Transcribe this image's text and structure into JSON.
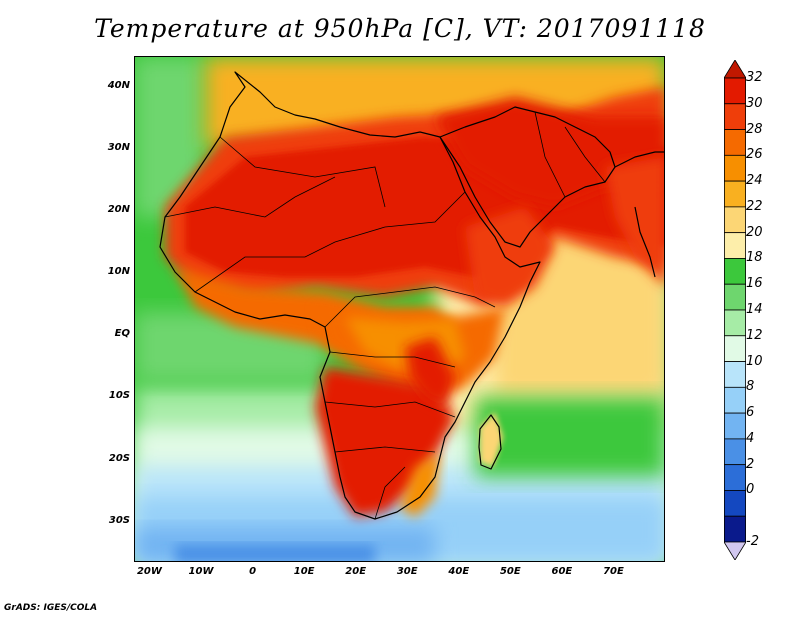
{
  "title": "Temperature at 950hPa [C], VT: 2017091118",
  "credit": "GrADS: IGES/COLA",
  "map": {
    "lon_range": [
      -23,
      80
    ],
    "lat_range": [
      -36.5,
      45
    ],
    "lat_ticks": [
      {
        "value": 40,
        "label": "40N"
      },
      {
        "value": 30,
        "label": "30N"
      },
      {
        "value": 20,
        "label": "20N"
      },
      {
        "value": 10,
        "label": "10N"
      },
      {
        "value": 0,
        "label": "EQ"
      },
      {
        "value": -10,
        "label": "10S"
      },
      {
        "value": -20,
        "label": "20S"
      },
      {
        "value": -30,
        "label": "30S"
      }
    ],
    "lon_ticks": [
      {
        "value": -20,
        "label": "20W"
      },
      {
        "value": -10,
        "label": "10W"
      },
      {
        "value": 0,
        "label": "0"
      },
      {
        "value": 10,
        "label": "10E"
      },
      {
        "value": 20,
        "label": "20E"
      },
      {
        "value": 30,
        "label": "30E"
      },
      {
        "value": 40,
        "label": "40E"
      },
      {
        "value": 50,
        "label": "50E"
      },
      {
        "value": 60,
        "label": "60E"
      },
      {
        "value": 70,
        "label": "70E"
      }
    ]
  },
  "colorbar": {
    "labels": [
      "32",
      "30",
      "28",
      "26",
      "24",
      "22",
      "20",
      "18",
      "16",
      "14",
      "12",
      "10",
      "8",
      "6",
      "4",
      "2",
      "0",
      "-2"
    ],
    "colors": [
      "#e31a00",
      "#ef3e0a",
      "#f56a00",
      "#f78f00",
      "#f9b020",
      "#fcd675",
      "#fdeeaa",
      "#3cc83c",
      "#6ed66e",
      "#a6eca6",
      "#e1fae6",
      "#b8e4fa",
      "#96d0f8",
      "#72b4f2",
      "#4a90e6",
      "#2c6ed8",
      "#1448c0",
      "#0a1a8c"
    ],
    "over_color": "#c01800",
    "under_color": "#d2c8f0"
  }
}
